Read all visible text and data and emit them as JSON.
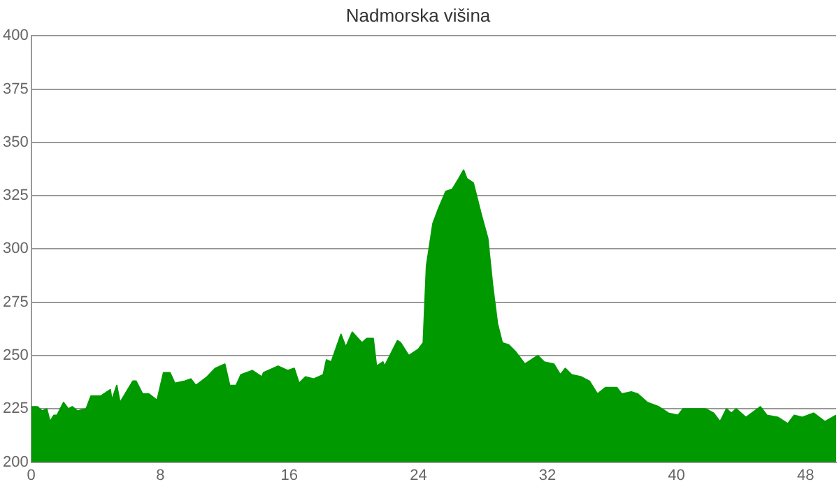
{
  "chart_data": {
    "type": "area",
    "title": "Nadmorska višina",
    "x": [
      0,
      0.38,
      0.67,
      0.96,
      1.16,
      1.4,
      1.6,
      2.0,
      2.3,
      2.55,
      2.85,
      3.4,
      3.7,
      4.3,
      4.9,
      5.0,
      5.3,
      5.5,
      6.3,
      6.5,
      6.9,
      7.3,
      7.8,
      8.2,
      8.6,
      8.9,
      9.5,
      9.9,
      10.2,
      10.9,
      11.4,
      12.0,
      12.3,
      12.7,
      13.0,
      13.7,
      14.3,
      14.4,
      15.3,
      15.9,
      16.3,
      16.6,
      17.0,
      17.5,
      18.1,
      18.3,
      18.6,
      19.2,
      19.5,
      19.9,
      20.5,
      20.8,
      21.2,
      21.4,
      21.8,
      21.9,
      22.7,
      22.9,
      23.4,
      24.0,
      24.3,
      24.5,
      24.9,
      25.25,
      25.7,
      26.1,
      26.5,
      26.8,
      27.0,
      27.4,
      27.9,
      28.3,
      28.6,
      28.9,
      29.2,
      29.6,
      30.0,
      30.6,
      31.4,
      31.8,
      32.4,
      32.8,
      33.1,
      33.5,
      34.1,
      34.6,
      35.1,
      35.6,
      36.3,
      36.6,
      37.2,
      37.6,
      38.2,
      38.9,
      39.5,
      40.1,
      40.4,
      41.1,
      41.8,
      42.3,
      42.7,
      43.1,
      43.4,
      43.7,
      44.3,
      45.2,
      45.6,
      46.3,
      46.9,
      47.3,
      47.8,
      48.5,
      49.2,
      49.9
    ],
    "series": [
      {
        "color": "#009900",
        "values": [
          226,
          226,
          224,
          225,
          219,
          222,
          222,
          228,
          225,
          226,
          224,
          225,
          231,
          231,
          234,
          229,
          236,
          228,
          238,
          238,
          232,
          232,
          229,
          242,
          242,
          237,
          238,
          239,
          236,
          240,
          244,
          246,
          236,
          236,
          241,
          243,
          240,
          242,
          245,
          243,
          244,
          237,
          240,
          239,
          241,
          248,
          247,
          260,
          254,
          261,
          256,
          258,
          258,
          245,
          247,
          245,
          257,
          256,
          250,
          253,
          256,
          292,
          312,
          319,
          327,
          328,
          333,
          337,
          333,
          331,
          316,
          305,
          283,
          265,
          256,
          255,
          252,
          246,
          250,
          247,
          246,
          241,
          244,
          241,
          240,
          238,
          232,
          235,
          235,
          232,
          233,
          232,
          228,
          226,
          223,
          222,
          225,
          225,
          225,
          223,
          219,
          225,
          223,
          225,
          221,
          226,
          222,
          221,
          218,
          222,
          221,
          223,
          219,
          222
        ]
      }
    ],
    "xlim": [
      0,
      49.9
    ],
    "xticks": [
      0,
      8,
      16,
      24,
      32,
      40,
      48
    ],
    "ylim": [
      200,
      400
    ],
    "yticks": [
      200,
      225,
      250,
      275,
      300,
      325,
      350,
      375,
      400
    ],
    "grid": "y",
    "legend": false,
    "marker": "none"
  }
}
